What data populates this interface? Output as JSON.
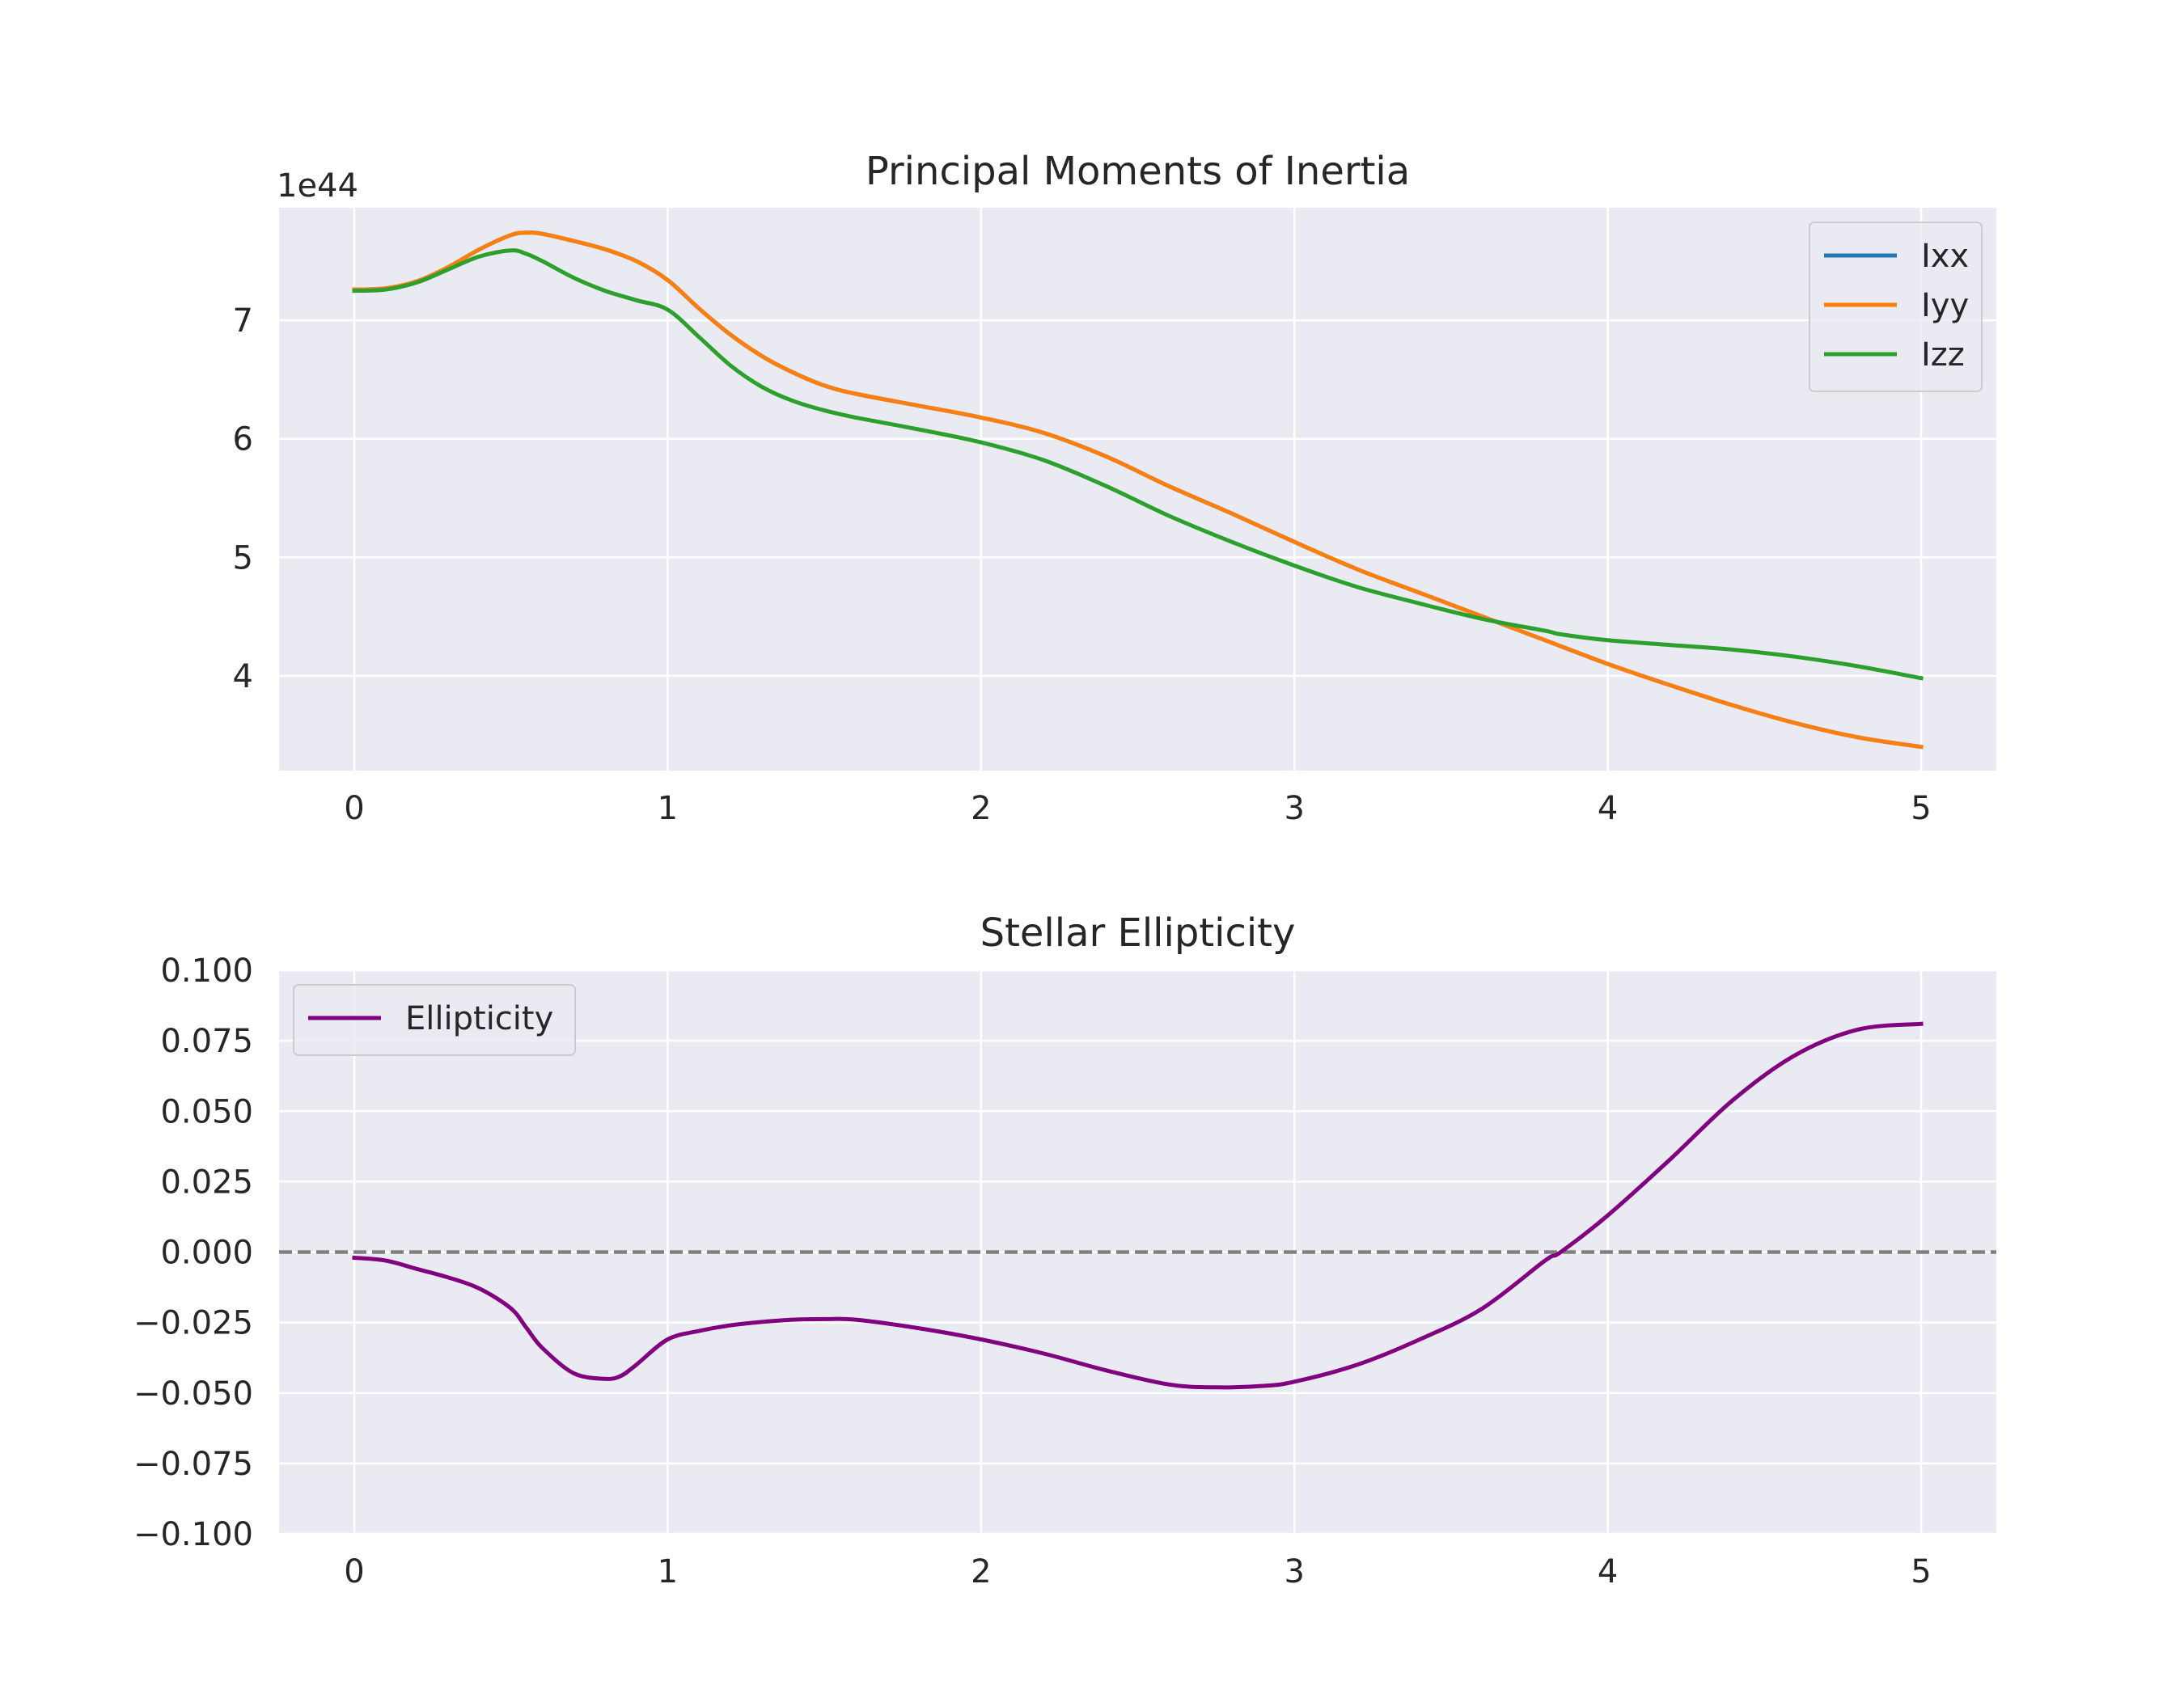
{
  "chart_data": [
    {
      "type": "line",
      "title": "Principal Moments of Inertia",
      "xlabel": "",
      "ylabel": "",
      "y_offset_label": "1e44",
      "xlim": [
        -0.24,
        5.24
      ],
      "ylim": [
        3.2,
        7.95
      ],
      "x_ticks": [
        0,
        1,
        2,
        3,
        4,
        5
      ],
      "y_ticks": [
        4,
        5,
        6,
        7
      ],
      "grid": true,
      "legend_position": "top-right",
      "series": [
        {
          "name": "Ixx",
          "color": "#1f77b4",
          "x": [
            0,
            0.1,
            0.2,
            0.3,
            0.4,
            0.5,
            0.55,
            0.6,
            0.7,
            0.8,
            0.9,
            1.0,
            1.1,
            1.2,
            1.3,
            1.4,
            1.5,
            1.6,
            1.8,
            2.0,
            2.2,
            2.4,
            2.6,
            2.8,
            3.0,
            3.2,
            3.4,
            3.6,
            3.8,
            4.0,
            4.2,
            4.4,
            4.6,
            4.8,
            5.0
          ],
          "y": [
            7.26,
            7.27,
            7.33,
            7.45,
            7.6,
            7.72,
            7.74,
            7.73,
            7.67,
            7.6,
            7.5,
            7.34,
            7.1,
            6.88,
            6.7,
            6.56,
            6.45,
            6.38,
            6.28,
            6.18,
            6.05,
            5.85,
            5.6,
            5.37,
            5.13,
            4.9,
            4.7,
            4.5,
            4.3,
            4.1,
            3.92,
            3.75,
            3.6,
            3.48,
            3.4
          ]
        },
        {
          "name": "Iyy",
          "color": "#ff7f0e",
          "x": [
            0,
            0.1,
            0.2,
            0.3,
            0.4,
            0.5,
            0.55,
            0.6,
            0.7,
            0.8,
            0.9,
            1.0,
            1.1,
            1.2,
            1.3,
            1.4,
            1.5,
            1.6,
            1.8,
            2.0,
            2.2,
            2.4,
            2.6,
            2.8,
            3.0,
            3.2,
            3.4,
            3.6,
            3.8,
            4.0,
            4.2,
            4.4,
            4.6,
            4.8,
            5.0
          ],
          "y": [
            7.26,
            7.27,
            7.33,
            7.45,
            7.6,
            7.72,
            7.74,
            7.73,
            7.67,
            7.6,
            7.5,
            7.34,
            7.1,
            6.88,
            6.7,
            6.56,
            6.45,
            6.38,
            6.28,
            6.18,
            6.05,
            5.85,
            5.6,
            5.37,
            5.13,
            4.9,
            4.7,
            4.5,
            4.3,
            4.1,
            3.92,
            3.75,
            3.6,
            3.48,
            3.4
          ]
        },
        {
          "name": "Izz",
          "color": "#2ca02c",
          "x": [
            0,
            0.1,
            0.2,
            0.3,
            0.4,
            0.5,
            0.55,
            0.6,
            0.7,
            0.8,
            0.9,
            1.0,
            1.1,
            1.2,
            1.3,
            1.4,
            1.5,
            1.6,
            1.8,
            2.0,
            2.2,
            2.4,
            2.6,
            2.8,
            3.0,
            3.2,
            3.4,
            3.6,
            3.8,
            3.85,
            4.0,
            4.2,
            4.4,
            4.6,
            4.8,
            5.0
          ],
          "y": [
            7.25,
            7.26,
            7.32,
            7.43,
            7.54,
            7.59,
            7.56,
            7.5,
            7.36,
            7.25,
            7.17,
            7.09,
            6.86,
            6.62,
            6.44,
            6.32,
            6.24,
            6.18,
            6.08,
            5.97,
            5.82,
            5.6,
            5.35,
            5.13,
            4.93,
            4.75,
            4.61,
            4.48,
            4.38,
            4.35,
            4.3,
            4.26,
            4.22,
            4.16,
            4.08,
            3.98
          ]
        }
      ]
    },
    {
      "type": "line",
      "title": "Stellar Ellipticity",
      "xlabel": "",
      "ylabel": "",
      "xlim": [
        -0.24,
        5.24
      ],
      "ylim": [
        -0.1,
        0.1
      ],
      "x_ticks": [
        0,
        1,
        2,
        3,
        4,
        5
      ],
      "y_ticks": [
        -0.1,
        -0.075,
        -0.05,
        -0.025,
        0.0,
        0.025,
        0.05,
        0.075,
        0.1
      ],
      "y_tick_labels": [
        "−0.100",
        "−0.075",
        "−0.050",
        "−0.025",
        "0.000",
        "0.025",
        "0.050",
        "0.075",
        "0.100"
      ],
      "grid": true,
      "legend_position": "top-left",
      "reference_line": {
        "y": 0.0,
        "style": "dashed",
        "color": "#808080"
      },
      "series": [
        {
          "name": "Ellipticity",
          "color": "#800080",
          "x": [
            0,
            0.1,
            0.2,
            0.3,
            0.4,
            0.5,
            0.55,
            0.6,
            0.7,
            0.8,
            0.85,
            0.9,
            1.0,
            1.1,
            1.2,
            1.3,
            1.4,
            1.5,
            1.6,
            1.8,
            2.0,
            2.2,
            2.4,
            2.6,
            2.75,
            2.9,
            3.0,
            3.2,
            3.4,
            3.6,
            3.8,
            3.85,
            4.0,
            4.2,
            4.4,
            4.6,
            4.8,
            5.0
          ],
          "y": [
            -0.002,
            -0.003,
            -0.006,
            -0.009,
            -0.013,
            -0.02,
            -0.027,
            -0.034,
            -0.043,
            -0.045,
            -0.044,
            -0.04,
            -0.031,
            -0.028,
            -0.026,
            -0.0248,
            -0.024,
            -0.0238,
            -0.024,
            -0.027,
            -0.031,
            -0.036,
            -0.042,
            -0.047,
            -0.048,
            -0.0475,
            -0.046,
            -0.04,
            -0.031,
            -0.02,
            -0.003,
            0.0,
            0.013,
            0.033,
            0.054,
            0.07,
            0.079,
            0.081
          ]
        }
      ]
    }
  ]
}
